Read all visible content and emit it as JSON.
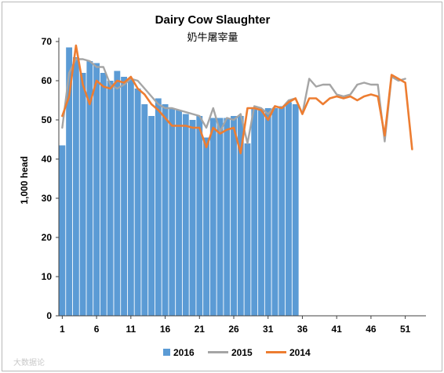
{
  "chart_data": {
    "type": "bar",
    "title": "Dairy Cow Slaughter",
    "subtitle": "奶牛屠宰量",
    "ylabel": "1,000 head",
    "xlabel": "",
    "ylim": [
      0,
      70
    ],
    "yticks": [
      0,
      10,
      20,
      30,
      40,
      50,
      60,
      70
    ],
    "xlim": [
      1,
      53
    ],
    "xticks": [
      1,
      6,
      11,
      16,
      21,
      26,
      31,
      36,
      41,
      46,
      51
    ],
    "grid": false,
    "legend_position": "bottom",
    "series": [
      {
        "name": "2016",
        "type": "bar",
        "color": "#5b9bd5",
        "x": [
          1,
          2,
          3,
          4,
          5,
          6,
          7,
          8,
          9,
          10,
          11,
          12,
          13,
          14,
          15,
          16,
          17,
          18,
          19,
          20,
          21,
          22,
          23,
          24,
          25,
          26,
          27,
          28,
          29,
          30,
          31,
          32,
          33,
          34,
          35
        ],
        "values": [
          43.5,
          68.5,
          66,
          62,
          65,
          64.5,
          62,
          60,
          62.5,
          61,
          60.5,
          58,
          54,
          51,
          55.5,
          54,
          53,
          52.5,
          51.5,
          50,
          51,
          45.5,
          50.5,
          50.5,
          50.5,
          51,
          51,
          44,
          53,
          52.5,
          53,
          53,
          53.5,
          54.5,
          54
        ]
      },
      {
        "name": "2015",
        "type": "line",
        "color": "#a5a5a5",
        "x": [
          1,
          2,
          3,
          4,
          5,
          6,
          7,
          8,
          9,
          10,
          11,
          12,
          13,
          14,
          15,
          16,
          17,
          18,
          19,
          20,
          21,
          22,
          23,
          24,
          25,
          26,
          27,
          28,
          29,
          30,
          31,
          32,
          33,
          34,
          35,
          36,
          37,
          38,
          39,
          40,
          41,
          42,
          43,
          44,
          45,
          46,
          47,
          48,
          49,
          50,
          51,
          52
        ],
        "values": [
          48,
          62,
          65.5,
          65.5,
          65,
          63.5,
          63.5,
          59,
          58,
          59,
          60.5,
          60,
          58,
          56,
          54,
          53,
          53,
          52.5,
          52,
          51.5,
          51,
          48,
          53,
          47,
          50.5,
          50,
          51.5,
          44,
          53.5,
          53,
          51.5,
          53.5,
          53,
          55,
          55.5,
          51.5,
          60.5,
          58.5,
          59,
          59,
          56.5,
          56,
          56.5,
          59,
          59.5,
          59,
          59,
          44.5,
          61,
          60,
          60.5,
          null
        ]
      },
      {
        "name": "2014",
        "type": "line",
        "color": "#ed7d31",
        "x": [
          1,
          2,
          3,
          4,
          5,
          6,
          7,
          8,
          9,
          10,
          11,
          12,
          13,
          14,
          15,
          16,
          17,
          18,
          19,
          20,
          21,
          22,
          23,
          24,
          25,
          26,
          27,
          28,
          29,
          30,
          31,
          32,
          33,
          34,
          35,
          36,
          37,
          38,
          39,
          40,
          41,
          42,
          43,
          44,
          45,
          46,
          47,
          48,
          49,
          50,
          51,
          52
        ],
        "values": [
          51,
          56,
          69,
          59,
          54,
          60,
          58.5,
          58,
          60,
          59.5,
          61,
          58,
          56.5,
          54,
          52.5,
          50.5,
          48.5,
          48.5,
          48.5,
          48,
          48,
          43,
          48,
          46.5,
          47.5,
          48,
          41.5,
          53,
          53,
          52.5,
          50,
          53.5,
          53,
          54.5,
          55.5,
          51.5,
          55.5,
          55.5,
          54,
          55.5,
          56,
          55.5,
          56,
          55,
          56,
          56.5,
          56,
          46,
          61.5,
          60.5,
          59.5,
          42.5
        ]
      }
    ]
  },
  "watermark": "大数据论"
}
